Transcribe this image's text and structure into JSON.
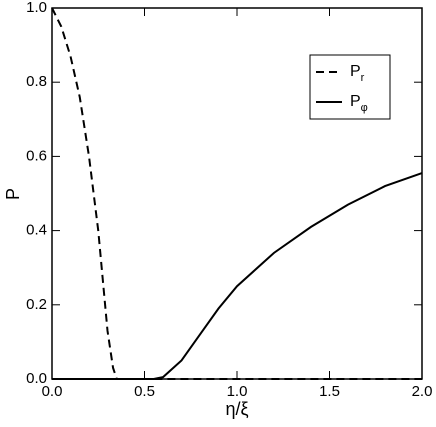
{
  "chart_data": {
    "type": "line",
    "xlabel": "η/ξ",
    "ylabel": "P",
    "x": [
      0,
      0.05,
      0.1,
      0.15,
      0.2,
      0.25,
      0.3,
      0.33,
      0.35,
      0.4,
      0.5,
      0.55,
      0.6,
      0.7,
      0.8,
      0.9,
      1.0,
      1.2,
      1.4,
      1.6,
      1.8,
      2.0
    ],
    "series": [
      {
        "name": "Pr",
        "color": "#000000",
        "dash": true,
        "values": [
          1.0,
          0.95,
          0.87,
          0.76,
          0.6,
          0.4,
          0.13,
          0.03,
          0,
          0,
          0,
          0,
          0,
          0,
          0,
          0,
          0,
          0,
          0,
          0,
          0,
          0
        ]
      },
      {
        "name": "Pφ",
        "color": "#000000",
        "dash": false,
        "values": [
          0,
          0,
          0,
          0,
          0,
          0,
          0,
          0,
          0,
          0,
          0,
          0,
          0.005,
          0.05,
          0.12,
          0.19,
          0.25,
          0.34,
          0.41,
          0.47,
          0.52,
          0.555
        ]
      }
    ],
    "xlim": [
      0,
      2
    ],
    "ylim": [
      0,
      1
    ],
    "xticks": [
      {
        "value": 0,
        "label": "0.0"
      },
      {
        "value": 0.5,
        "label": "0.5"
      },
      {
        "value": 1,
        "label": "1.0"
      },
      {
        "value": 1.5,
        "label": "1.5"
      },
      {
        "value": 2,
        "label": "2.0"
      }
    ],
    "yticks": [
      {
        "value": 0,
        "label": "0.0"
      },
      {
        "value": 0.2,
        "label": "0.2"
      },
      {
        "value": 0.4,
        "label": "0.4"
      },
      {
        "value": 0.6,
        "label": "0.6"
      },
      {
        "value": 0.8,
        "label": "0.8"
      },
      {
        "value": 1,
        "label": "1.0"
      }
    ],
    "legend": "upper-right"
  }
}
